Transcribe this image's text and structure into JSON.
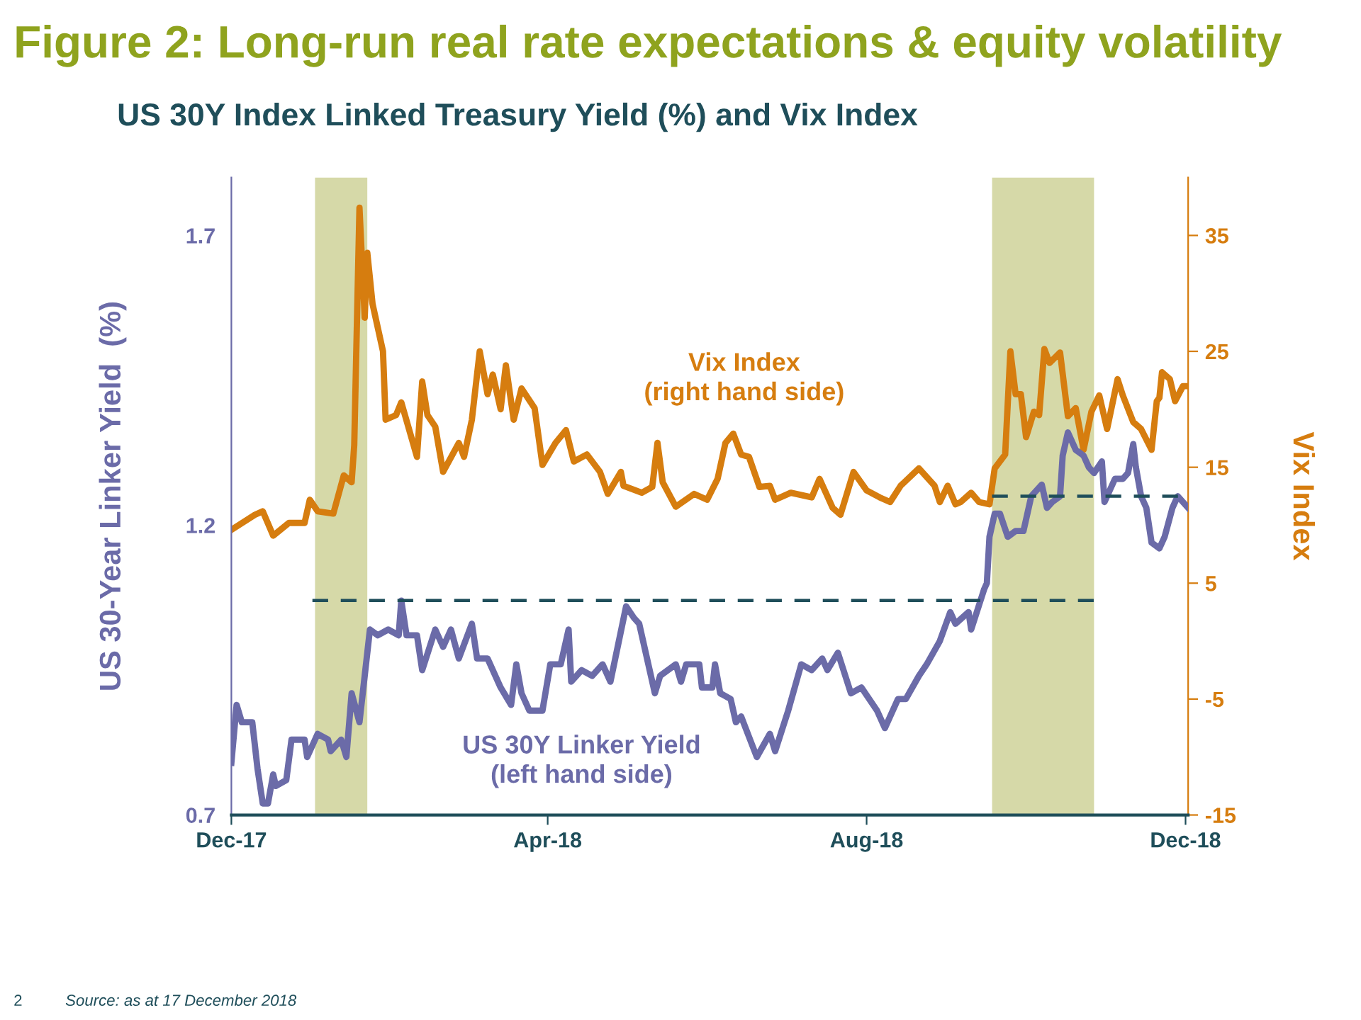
{
  "chart_data": {
    "type": "line",
    "title": "Figure 2: Long-run real rate expectations & equity volatility",
    "subtitle": "US 30Y Index Linked Treasury Yield (%) and Vix Index",
    "ylabel": "US 30-Year Linker Yield  (%)",
    "y2label": "Vix Index",
    "annotations": [
      "Source: as at 17 December 2018",
      "2"
    ],
    "xlim": [
      "2017-12-15",
      "2018-12-16"
    ],
    "xticks": [
      {
        "value": "2017-12-15",
        "label": "Dec-17"
      },
      {
        "value": "2018-04-15",
        "label": "Apr-18"
      },
      {
        "value": "2018-08-15",
        "label": "Aug-18"
      },
      {
        "value": "2018-12-15",
        "label": "Dec-18"
      }
    ],
    "ylim": [
      0.7,
      1.8
    ],
    "yticks": [
      0.7,
      1.2,
      1.7
    ],
    "y2lim": [
      -15,
      40
    ],
    "y2ticks": [
      -15,
      -5,
      5,
      15,
      25,
      35
    ],
    "bands": [
      {
        "axis": "x",
        "from": "2018-01-16",
        "to": "2018-02-05",
        "color": "#d6d9a8"
      },
      {
        "axis": "x",
        "from": "2018-10-02",
        "to": "2018-11-10",
        "color": "#d6d9a8"
      }
    ],
    "series": [
      {
        "name": "US 30Y Linker Yield\n(left hand side)",
        "color": "#6b6ba8",
        "axis": "y",
        "x": [
          "2017-12-15",
          "2017-12-17",
          "2017-12-19",
          "2017-12-23",
          "2017-12-25",
          "2017-12-27",
          "2017-12-29",
          "2017-12-31",
          "2018-01-01",
          "2018-01-05",
          "2018-01-07",
          "2018-01-10",
          "2018-01-12",
          "2018-01-13",
          "2018-01-17",
          "2018-01-21",
          "2018-01-22",
          "2018-01-26",
          "2018-01-28",
          "2018-01-30",
          "2018-02-02",
          "2018-02-06",
          "2018-02-09",
          "2018-02-13",
          "2018-02-17",
          "2018-02-18",
          "2018-02-20",
          "2018-02-24",
          "2018-02-26",
          "2018-03-03",
          "2018-03-06",
          "2018-03-09",
          "2018-03-12",
          "2018-03-17",
          "2018-03-19",
          "2018-03-23",
          "2018-03-28",
          "2018-04-01",
          "2018-04-03",
          "2018-04-05",
          "2018-04-08",
          "2018-04-13",
          "2018-04-16",
          "2018-04-20",
          "2018-04-23",
          "2018-04-24",
          "2018-04-28",
          "2018-05-02",
          "2018-05-06",
          "2018-05-09",
          "2018-05-15",
          "2018-05-18",
          "2018-05-20",
          "2018-05-22",
          "2018-05-26",
          "2018-05-28",
          "2018-06-03",
          "2018-06-05",
          "2018-06-07",
          "2018-06-12",
          "2018-06-13",
          "2018-06-17",
          "2018-06-18",
          "2018-06-20",
          "2018-06-24",
          "2018-06-26",
          "2018-06-28",
          "2018-07-04",
          "2018-07-09",
          "2018-07-11",
          "2018-07-16",
          "2018-07-21",
          "2018-07-25",
          "2018-07-29",
          "2018-07-31",
          "2018-08-04",
          "2018-08-09",
          "2018-08-13",
          "2018-08-19",
          "2018-08-22",
          "2018-08-27",
          "2018-08-30",
          "2018-09-04",
          "2018-09-07",
          "2018-09-12",
          "2018-09-16",
          "2018-09-18",
          "2018-09-23",
          "2018-09-24",
          "2018-09-29",
          "2018-09-30",
          "2018-10-01",
          "2018-10-03",
          "2018-10-05",
          "2018-10-08",
          "2018-10-11",
          "2018-10-14",
          "2018-10-17",
          "2018-10-21",
          "2018-10-23",
          "2018-10-25",
          "2018-10-28",
          "2018-10-29",
          "2018-10-31",
          "2018-11-03",
          "2018-11-06",
          "2018-11-08",
          "2018-11-10",
          "2018-11-13",
          "2018-11-14",
          "2018-11-18",
          "2018-11-21",
          "2018-11-23",
          "2018-11-25",
          "2018-11-26",
          "2018-11-28",
          "2018-11-30",
          "2018-12-02",
          "2018-12-05",
          "2018-12-07",
          "2018-12-10",
          "2018-12-12",
          "2018-12-16"
        ],
        "values": [
          0.79,
          0.89,
          0.86,
          0.86,
          0.78,
          0.72,
          0.72,
          0.77,
          0.75,
          0.76,
          0.83,
          0.83,
          0.83,
          0.8,
          0.84,
          0.83,
          0.81,
          0.83,
          0.8,
          0.91,
          0.86,
          1.02,
          1.01,
          1.02,
          1.01,
          1.07,
          1.01,
          1.01,
          0.95,
          1.02,
          0.99,
          1.02,
          0.97,
          1.03,
          0.97,
          0.97,
          0.92,
          0.89,
          0.96,
          0.91,
          0.88,
          0.88,
          0.96,
          0.96,
          1.02,
          0.93,
          0.95,
          0.94,
          0.96,
          0.93,
          1.06,
          1.04,
          1.03,
          0.99,
          0.91,
          0.94,
          0.96,
          0.93,
          0.96,
          0.96,
          0.92,
          0.92,
          0.96,
          0.91,
          0.9,
          0.86,
          0.87,
          0.8,
          0.84,
          0.81,
          0.88,
          0.96,
          0.95,
          0.97,
          0.95,
          0.98,
          0.91,
          0.92,
          0.88,
          0.85,
          0.9,
          0.9,
          0.94,
          0.96,
          1.0,
          1.05,
          1.03,
          1.05,
          1.02,
          1.09,
          1.1,
          1.18,
          1.22,
          1.22,
          1.18,
          1.19,
          1.19,
          1.25,
          1.27,
          1.23,
          1.24,
          1.25,
          1.32,
          1.36,
          1.33,
          1.32,
          1.3,
          1.29,
          1.31,
          1.24,
          1.28,
          1.28,
          1.29,
          1.34,
          1.3,
          1.25,
          1.23,
          1.17,
          1.16,
          1.18,
          1.23,
          1.25,
          1.23
        ]
      },
      {
        "name": "Vix Index\n(right hand side)",
        "color": "#d67d0f",
        "axis": "y2",
        "x": [
          "2017-12-15",
          "2017-12-24",
          "2017-12-27",
          "2017-12-31",
          "2018-01-06",
          "2018-01-12",
          "2018-01-14",
          "2018-01-17",
          "2018-01-23",
          "2018-01-27",
          "2018-01-30",
          "2018-01-31",
          "2018-02-02",
          "2018-02-04",
          "2018-02-05",
          "2018-02-07",
          "2018-02-11",
          "2018-02-12",
          "2018-02-16",
          "2018-02-18",
          "2018-02-24",
          "2018-02-26",
          "2018-02-28",
          "2018-03-03",
          "2018-03-06",
          "2018-03-12",
          "2018-03-14",
          "2018-03-17",
          "2018-03-20",
          "2018-03-23",
          "2018-03-25",
          "2018-03-28",
          "2018-03-30",
          "2018-04-02",
          "2018-04-05",
          "2018-04-10",
          "2018-04-13",
          "2018-04-18",
          "2018-04-22",
          "2018-04-25",
          "2018-04-30",
          "2018-05-05",
          "2018-05-08",
          "2018-05-13",
          "2018-05-14",
          "2018-05-21",
          "2018-05-25",
          "2018-05-27",
          "2018-05-29",
          "2018-06-03",
          "2018-06-10",
          "2018-06-15",
          "2018-06-19",
          "2018-06-22",
          "2018-06-25",
          "2018-06-28",
          "2018-07-01",
          "2018-07-05",
          "2018-07-09",
          "2018-07-11",
          "2018-07-17",
          "2018-07-25",
          "2018-07-28",
          "2018-08-02",
          "2018-08-05",
          "2018-08-10",
          "2018-08-15",
          "2018-08-20",
          "2018-08-24",
          "2018-08-28",
          "2018-09-04",
          "2018-09-10",
          "2018-09-12",
          "2018-09-15",
          "2018-09-18",
          "2018-09-20",
          "2018-09-24",
          "2018-09-27",
          "2018-10-01",
          "2018-10-03",
          "2018-10-07",
          "2018-10-09",
          "2018-10-11",
          "2018-10-13",
          "2018-10-15",
          "2018-10-18",
          "2018-10-20",
          "2018-10-22",
          "2018-10-24",
          "2018-10-28",
          "2018-10-31",
          "2018-11-03",
          "2018-11-06",
          "2018-11-09",
          "2018-11-12",
          "2018-11-15",
          "2018-11-19",
          "2018-11-21",
          "2018-11-25",
          "2018-11-28",
          "2018-12-02",
          "2018-12-04",
          "2018-12-05",
          "2018-12-06",
          "2018-12-09",
          "2018-12-11",
          "2018-12-14",
          "2018-12-16"
        ],
        "values": [
          9.6,
          10.9,
          11.2,
          9.1,
          10.2,
          10.2,
          12.2,
          11.2,
          11.0,
          14.3,
          13.7,
          16.9,
          37.4,
          27.9,
          33.5,
          29.1,
          25.0,
          19.1,
          19.5,
          20.6,
          15.9,
          22.4,
          19.5,
          18.5,
          14.6,
          17.1,
          15.9,
          19.1,
          25.0,
          21.3,
          23.0,
          20.0,
          23.8,
          19.1,
          21.8,
          20.1,
          15.2,
          17.1,
          18.2,
          15.5,
          16.1,
          14.6,
          12.7,
          14.6,
          13.4,
          12.8,
          13.3,
          17.1,
          13.7,
          11.6,
          12.7,
          12.2,
          14.0,
          17.1,
          17.9,
          16.1,
          15.9,
          13.3,
          13.4,
          12.2,
          12.8,
          12.4,
          14.0,
          11.5,
          10.9,
          14.6,
          13.0,
          12.4,
          12.0,
          13.4,
          14.9,
          13.4,
          12.0,
          13.4,
          11.8,
          12.0,
          12.8,
          12.0,
          11.8,
          14.9,
          16.1,
          25.0,
          21.3,
          21.3,
          17.6,
          19.8,
          19.5,
          25.2,
          24.0,
          24.9,
          19.4,
          20.1,
          16.5,
          19.8,
          21.2,
          18.3,
          22.6,
          21.2,
          18.9,
          18.3,
          16.5,
          20.7,
          21.0,
          23.2,
          22.6,
          20.7,
          22.0,
          22.0
        ]
      },
      {
        "color": "#1f4e5a",
        "axis": "y",
        "line_style": "dashed",
        "x": [
          "2018-01-15",
          "2018-11-10"
        ],
        "values": [
          1.07,
          1.07
        ]
      },
      {
        "color": "#1f4e5a",
        "axis": "y",
        "line_style": "dashed",
        "x": [
          "2018-10-02",
          "2018-12-15"
        ],
        "values": [
          1.25,
          1.25
        ]
      }
    ]
  }
}
